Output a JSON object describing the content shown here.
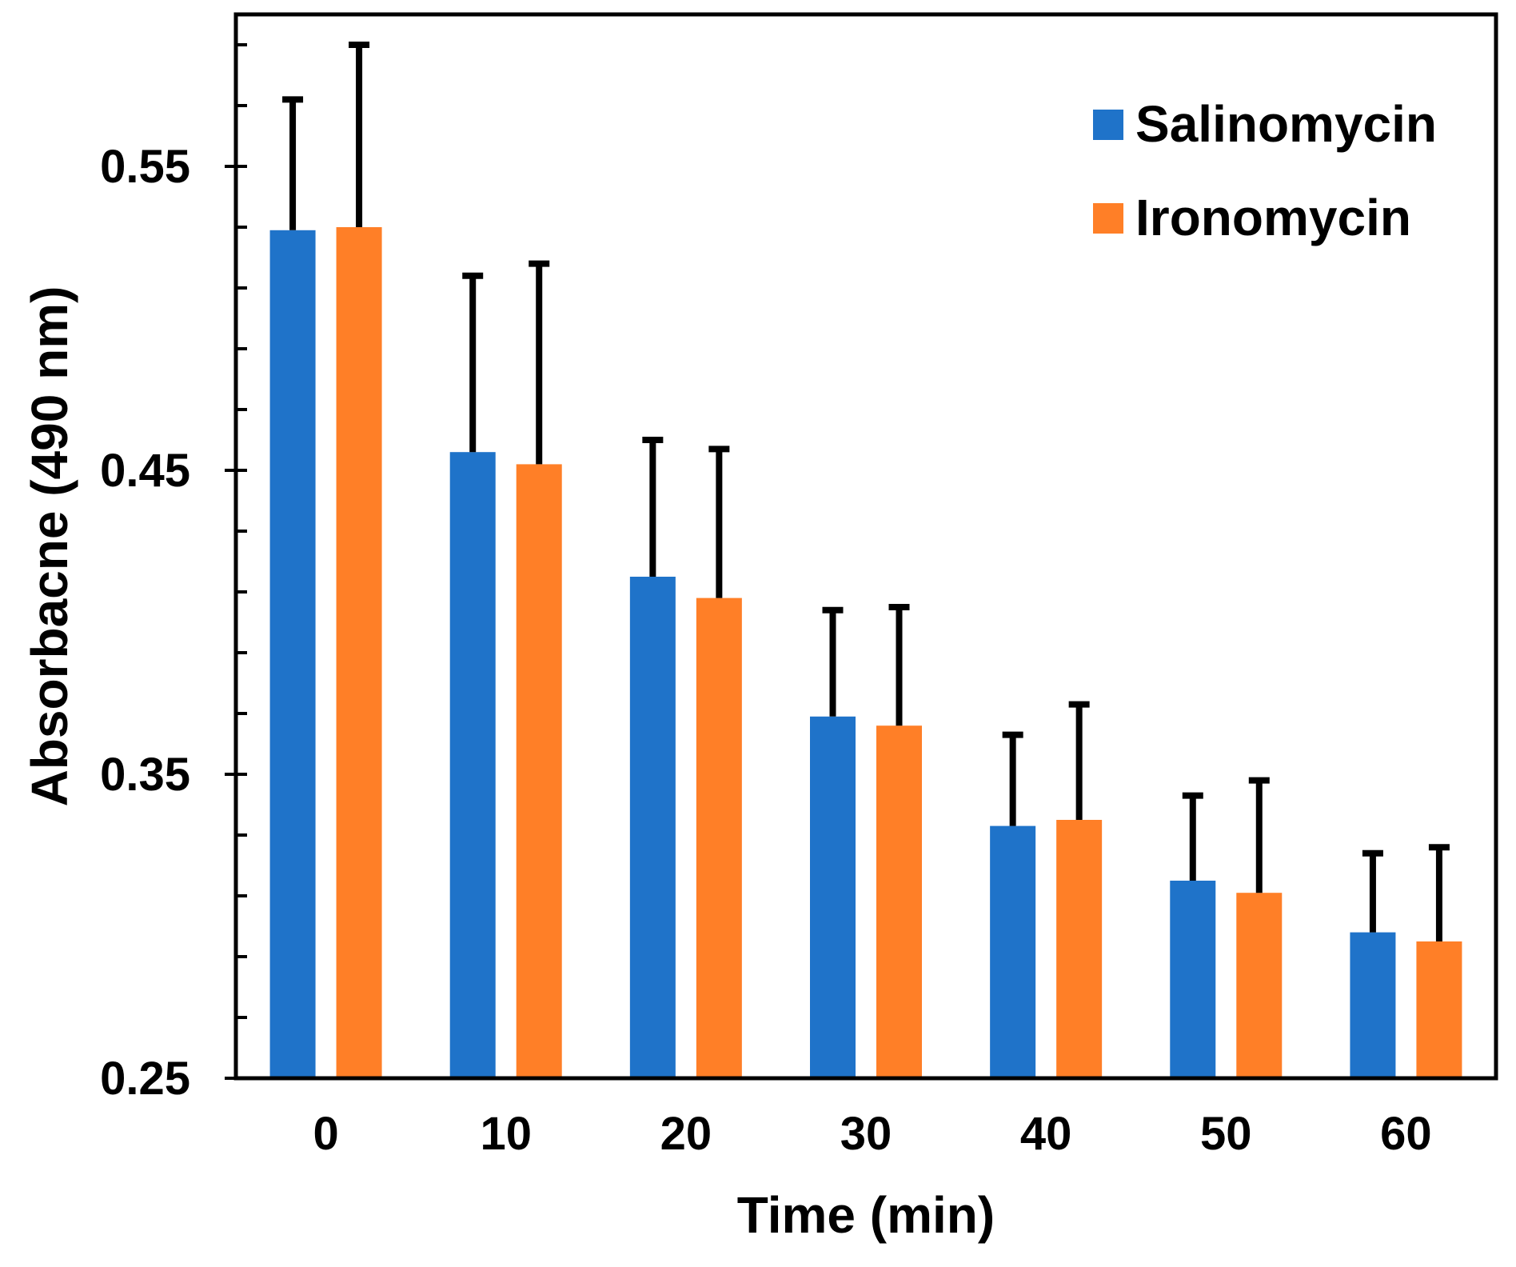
{
  "chart_data": {
    "type": "bar",
    "title": "",
    "xlabel": "Time (min)",
    "ylabel": "Absorbacne (490 nm)",
    "categories": [
      "0",
      "10",
      "20",
      "30",
      "40",
      "50",
      "60"
    ],
    "ylim": [
      0.25,
      0.6
    ],
    "yticks": [
      {
        "value": 0.25,
        "label": "0.25"
      },
      {
        "value": 0.35,
        "label": "0.35"
      },
      {
        "value": 0.45,
        "label": "0.45"
      },
      {
        "value": 0.55,
        "label": "0.55"
      }
    ],
    "minor_tick_step": 0.02,
    "grid": false,
    "legend_position": "top-right",
    "series": [
      {
        "name": "Salinomycin",
        "color": "#1f73c9",
        "values": [
          0.529,
          0.456,
          0.415,
          0.369,
          0.333,
          0.315,
          0.298
        ],
        "errors": [
          0.043,
          0.058,
          0.045,
          0.035,
          0.03,
          0.028,
          0.026
        ]
      },
      {
        "name": "Ironomycin",
        "color": "#ff7f27",
        "values": [
          0.53,
          0.452,
          0.408,
          0.366,
          0.335,
          0.311,
          0.295
        ],
        "errors": [
          0.06,
          0.066,
          0.049,
          0.039,
          0.038,
          0.037,
          0.031
        ]
      }
    ],
    "error_bar_color": "#000000"
  }
}
